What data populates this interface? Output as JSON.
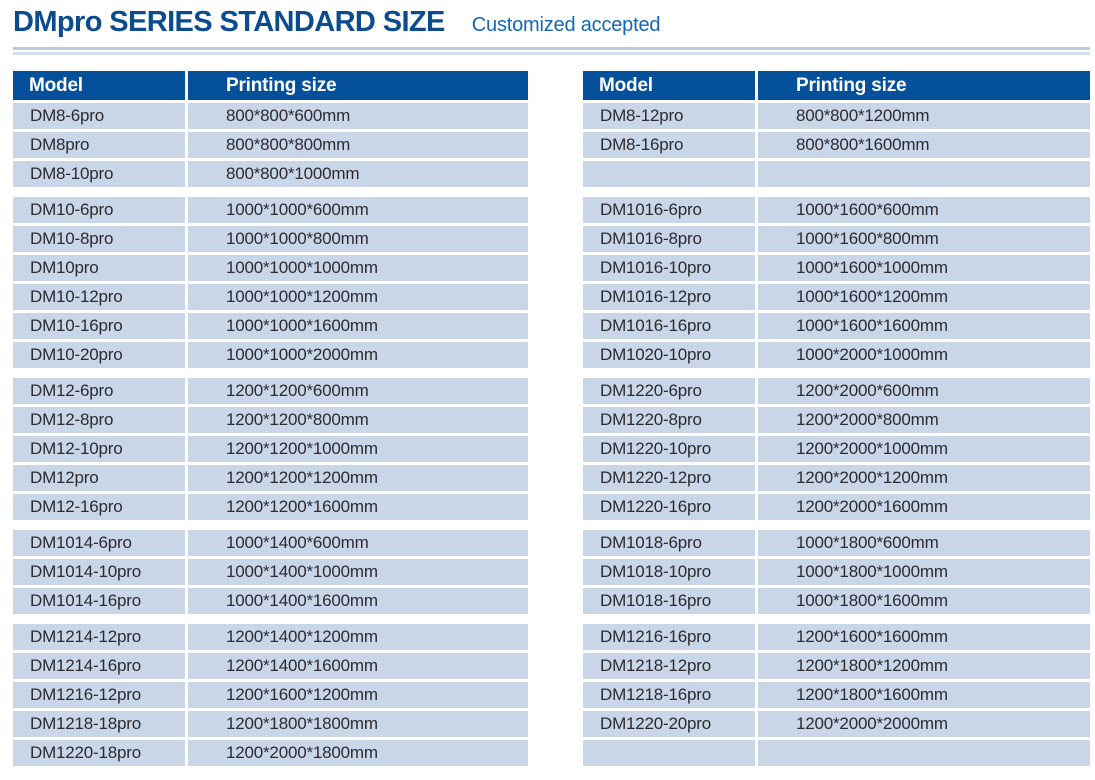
{
  "page": {
    "title": "DMpro SERIES STANDARD SIZE",
    "subtitle": "Customized accepted"
  },
  "colors": {
    "title": "#0b4c91",
    "subtitle": "#1268b3",
    "header_bg": "#05509b",
    "row_bg": "#c9d6e7",
    "cell_text": "#2b2b31",
    "rule_top": "#b7cce3",
    "rule_bottom": "#d2e0ee"
  },
  "tables": {
    "left": {
      "headers": [
        "Model",
        "Printing size"
      ],
      "groups": [
        [
          {
            "model": "DM8-6pro",
            "size": "800*800*600mm"
          },
          {
            "model": "DM8pro",
            "size": "800*800*800mm"
          },
          {
            "model": "DM8-10pro",
            "size": "800*800*1000mm"
          }
        ],
        [
          {
            "model": "DM10-6pro",
            "size": "1000*1000*600mm"
          },
          {
            "model": "DM10-8pro",
            "size": "1000*1000*800mm"
          },
          {
            "model": "DM10pro",
            "size": "1000*1000*1000mm"
          },
          {
            "model": "DM10-12pro",
            "size": "1000*1000*1200mm"
          },
          {
            "model": "DM10-16pro",
            "size": "1000*1000*1600mm"
          },
          {
            "model": "DM10-20pro",
            "size": "1000*1000*2000mm"
          }
        ],
        [
          {
            "model": "DM12-6pro",
            "size": "1200*1200*600mm"
          },
          {
            "model": "DM12-8pro",
            "size": "1200*1200*800mm"
          },
          {
            "model": "DM12-10pro",
            "size": "1200*1200*1000mm"
          },
          {
            "model": "DM12pro",
            "size": "1200*1200*1200mm"
          },
          {
            "model": "DM12-16pro",
            "size": "1200*1200*1600mm"
          }
        ],
        [
          {
            "model": "DM1014-6pro",
            "size": "1000*1400*600mm"
          },
          {
            "model": "DM1014-10pro",
            "size": "1000*1400*1000mm"
          },
          {
            "model": "DM1014-16pro",
            "size": "1000*1400*1600mm"
          }
        ],
        [
          {
            "model": "DM1214-12pro",
            "size": "1200*1400*1200mm"
          },
          {
            "model": "DM1214-16pro",
            "size": "1200*1400*1600mm"
          },
          {
            "model": "DM1216-12pro",
            "size": "1200*1600*1200mm"
          },
          {
            "model": "DM1218-18pro",
            "size": "1200*1800*1800mm"
          },
          {
            "model": "DM1220-18pro",
            "size": "1200*2000*1800mm"
          }
        ]
      ]
    },
    "right": {
      "headers": [
        "Model",
        "Printing size"
      ],
      "groups": [
        [
          {
            "model": "DM8-12pro",
            "size": "800*800*1200mm"
          },
          {
            "model": "DM8-16pro",
            "size": "800*800*1600mm"
          },
          {
            "model": "",
            "size": ""
          }
        ],
        [
          {
            "model": "DM1016-6pro",
            "size": "1000*1600*600mm"
          },
          {
            "model": "DM1016-8pro",
            "size": "1000*1600*800mm"
          },
          {
            "model": "DM1016-10pro",
            "size": "1000*1600*1000mm"
          },
          {
            "model": "DM1016-12pro",
            "size": "1000*1600*1200mm"
          },
          {
            "model": "DM1016-16pro",
            "size": "1000*1600*1600mm"
          },
          {
            "model": "DM1020-10pro",
            "size": "1000*2000*1000mm"
          }
        ],
        [
          {
            "model": "DM1220-6pro",
            "size": "1200*2000*600mm"
          },
          {
            "model": "DM1220-8pro",
            "size": "1200*2000*800mm"
          },
          {
            "model": "DM1220-10pro",
            "size": "1200*2000*1000mm"
          },
          {
            "model": "DM1220-12pro",
            "size": "1200*2000*1200mm"
          },
          {
            "model": "DM1220-16pro",
            "size": "1200*2000*1600mm"
          }
        ],
        [
          {
            "model": "DM1018-6pro",
            "size": "1000*1800*600mm"
          },
          {
            "model": "DM1018-10pro",
            "size": "1000*1800*1000mm"
          },
          {
            "model": "DM1018-16pro",
            "size": "1000*1800*1600mm"
          }
        ],
        [
          {
            "model": "DM1216-16pro",
            "size": "1200*1600*1600mm"
          },
          {
            "model": "DM1218-12pro",
            "size": "1200*1800*1200mm"
          },
          {
            "model": "DM1218-16pro",
            "size": "1200*1800*1600mm"
          },
          {
            "model": "DM1220-20pro",
            "size": "1200*2000*2000mm"
          },
          {
            "model": "",
            "size": ""
          }
        ]
      ]
    }
  }
}
